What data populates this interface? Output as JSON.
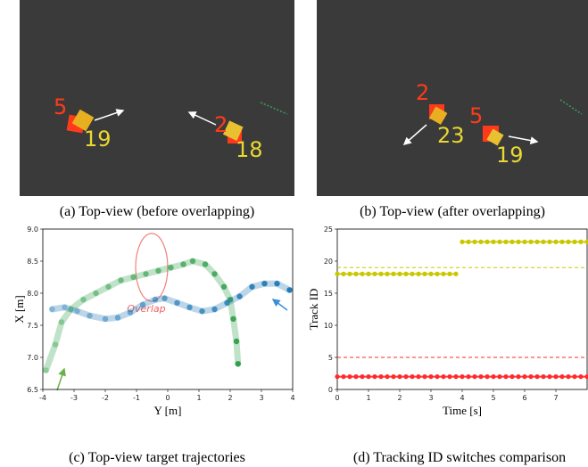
{
  "images": [
    {
      "labels": [
        "5",
        "19",
        "2",
        "18"
      ],
      "caption": "(a) Top-view (before overlapping)"
    },
    {
      "labels": [
        "2",
        "23",
        "5",
        "19"
      ],
      "caption": "(b) Top-view (after overlapping)"
    }
  ],
  "chart_data": [
    {
      "type": "line",
      "caption": "(c) Top-view target trajectories",
      "x_label": "Y [m]",
      "y_label": "X [m]",
      "annotation": "Overlap",
      "xlim": [
        -4,
        4
      ],
      "xticks": [
        -4,
        -3,
        -2,
        -1,
        0,
        1,
        2,
        3,
        4
      ],
      "ylim": [
        6.5,
        9
      ],
      "yticks": [
        6.5,
        {
          "value": 7,
          "label": "7.0"
        },
        7.5,
        {
          "value": 8,
          "label": "8.0"
        },
        8.5,
        {
          "value": 9,
          "label": "9.0"
        }
      ],
      "series": [
        {
          "color": "#2e9e4a",
          "x": [
            -3.9,
            -3.6,
            -3.4,
            -3.1,
            -2.7,
            -2.3,
            -1.9,
            -1.5,
            -1.1,
            -0.7,
            -0.3,
            0.1,
            0.5,
            0.8,
            1.2,
            1.5,
            1.8,
            2.0,
            2.1,
            2.2,
            2.25
          ],
          "values": [
            6.8,
            7.2,
            7.55,
            7.75,
            7.9,
            8.0,
            8.1,
            8.2,
            8.25,
            8.3,
            8.35,
            8.4,
            8.45,
            8.5,
            8.45,
            8.3,
            8.1,
            7.9,
            7.6,
            7.25,
            6.9
          ]
        },
        {
          "color": "#1f77b4",
          "x": [
            -3.7,
            -3.3,
            -2.9,
            -2.5,
            -2.0,
            -1.6,
            -1.2,
            -0.8,
            -0.4,
            -0.1,
            0.3,
            0.7,
            1.1,
            1.5,
            1.9,
            2.3,
            2.7,
            3.1,
            3.5,
            3.9
          ],
          "values": [
            7.75,
            7.78,
            7.72,
            7.65,
            7.6,
            7.62,
            7.7,
            7.82,
            7.9,
            7.92,
            7.85,
            7.78,
            7.72,
            7.75,
            7.85,
            7.95,
            8.1,
            8.15,
            8.15,
            8.05
          ]
        }
      ]
    },
    {
      "type": "line",
      "caption": "(d) Tracking ID switches comparison",
      "x_label": "Time [s]",
      "y_label": "Track ID",
      "xlim": [
        0,
        8
      ],
      "xticks": [
        0,
        1,
        2,
        3,
        4,
        5,
        6,
        7
      ],
      "ylim": [
        0,
        25
      ],
      "yticks": [
        0,
        5,
        10,
        15,
        20,
        25
      ],
      "hlines": [
        {
          "value": 19,
          "color": "#c8c800"
        },
        {
          "value": 5,
          "color": "#ff2a2a"
        }
      ],
      "x": [
        0,
        0.2,
        0.4,
        0.6,
        0.8,
        1.0,
        1.2,
        1.4,
        1.6,
        1.8,
        2.0,
        2.2,
        2.4,
        2.6,
        2.8,
        3.0,
        3.2,
        3.4,
        3.6,
        3.8,
        4.0,
        4.2,
        4.4,
        4.6,
        4.8,
        5.0,
        5.2,
        5.4,
        5.6,
        5.8,
        6.0,
        6.2,
        6.4,
        6.6,
        6.8,
        7.0,
        7.2,
        7.4,
        7.6,
        7.8,
        8.0
      ],
      "series": [
        {
          "color": "#ff2a2a",
          "values": [
            2,
            2,
            2,
            2,
            2,
            2,
            2,
            2,
            2,
            2,
            2,
            2,
            2,
            2,
            2,
            2,
            2,
            2,
            2,
            2,
            2,
            2,
            2,
            2,
            2,
            2,
            2,
            2,
            2,
            2,
            2,
            2,
            2,
            2,
            2,
            2,
            2,
            2,
            2,
            2,
            2
          ]
        },
        {
          "color": "#c8c800",
          "values": [
            18,
            18,
            18,
            18,
            18,
            18,
            18,
            18,
            18,
            18,
            18,
            18,
            18,
            18,
            18,
            18,
            18,
            18,
            18,
            18,
            null,
            null,
            null,
            null,
            null,
            null,
            null,
            null,
            null,
            null,
            null,
            null,
            null,
            null,
            null,
            null,
            null,
            null,
            null,
            null,
            null
          ]
        },
        {
          "color": "#c8c800",
          "values": [
            null,
            null,
            null,
            null,
            null,
            null,
            null,
            null,
            null,
            null,
            null,
            null,
            null,
            null,
            null,
            null,
            null,
            null,
            null,
            null,
            23,
            23,
            23,
            23,
            23,
            23,
            23,
            23,
            23,
            23,
            23,
            23,
            23,
            23,
            23,
            23,
            23,
            23,
            23,
            23,
            23
          ]
        }
      ]
    }
  ]
}
